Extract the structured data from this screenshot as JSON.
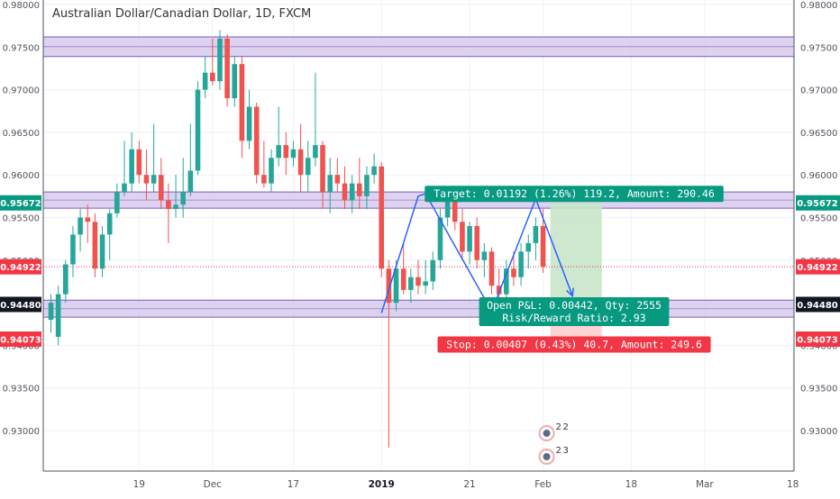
{
  "chart_data": {
    "type": "candlestick",
    "title": "Australian Dollar/Canadian Dollar, 1D, FXCM",
    "y_axis": {
      "range": [
        0.9255,
        0.98
      ],
      "ticks": [
        "0.98000",
        "0.97500",
        "0.97000",
        "0.96500",
        "0.96000",
        "0.95500",
        "0.95000",
        "0.94500",
        "0.94000",
        "0.93500",
        "0.93000"
      ]
    },
    "x_axis": {
      "labels": [
        {
          "label": "19",
          "index": 12
        },
        {
          "label": "Dec",
          "index": 22
        },
        {
          "label": "17",
          "index": 33
        },
        {
          "label": "2019",
          "index": 45
        },
        {
          "label": "21",
          "index": 57
        },
        {
          "label": "Feb",
          "index": 67
        },
        {
          "label": "18",
          "index": 79
        },
        {
          "label": "Mar",
          "index": 89
        },
        {
          "label": "18",
          "index": 101
        }
      ]
    },
    "candles": [
      [
        0.943,
        0.946,
        0.9415,
        0.945
      ],
      [
        0.941,
        0.947,
        0.94,
        0.946
      ],
      [
        0.946,
        0.95,
        0.945,
        0.9495
      ],
      [
        0.9495,
        0.954,
        0.948,
        0.953
      ],
      [
        0.953,
        0.956,
        0.951,
        0.955
      ],
      [
        0.955,
        0.9565,
        0.952,
        0.9545
      ],
      [
        0.9545,
        0.9555,
        0.948,
        0.949
      ],
      [
        0.949,
        0.954,
        0.948,
        0.953
      ],
      [
        0.953,
        0.956,
        0.95,
        0.9555
      ],
      [
        0.9555,
        0.959,
        0.955,
        0.958
      ],
      [
        0.958,
        0.964,
        0.9575,
        0.959
      ],
      [
        0.959,
        0.965,
        0.958,
        0.963
      ],
      [
        0.963,
        0.964,
        0.959,
        0.96
      ],
      [
        0.96,
        0.963,
        0.957,
        0.959
      ],
      [
        0.959,
        0.966,
        0.958,
        0.96
      ],
      [
        0.96,
        0.962,
        0.956,
        0.957
      ],
      [
        0.957,
        0.959,
        0.952,
        0.956
      ],
      [
        0.956,
        0.96,
        0.955,
        0.9565
      ],
      [
        0.9565,
        0.962,
        0.955,
        0.958
      ],
      [
        0.958,
        0.966,
        0.9575,
        0.9605
      ],
      [
        0.9605,
        0.971,
        0.96,
        0.97
      ],
      [
        0.97,
        0.974,
        0.969,
        0.972
      ],
      [
        0.972,
        0.976,
        0.9705,
        0.971
      ],
      [
        0.971,
        0.977,
        0.97,
        0.976
      ],
      [
        0.976,
        0.9765,
        0.968,
        0.969
      ],
      [
        0.969,
        0.974,
        0.968,
        0.973
      ],
      [
        0.973,
        0.974,
        0.962,
        0.964
      ],
      [
        0.964,
        0.97,
        0.963,
        0.968
      ],
      [
        0.968,
        0.9685,
        0.959,
        0.96
      ],
      [
        0.96,
        0.964,
        0.9585,
        0.959
      ],
      [
        0.959,
        0.963,
        0.958,
        0.962
      ],
      [
        0.962,
        0.968,
        0.961,
        0.9635
      ],
      [
        0.9635,
        0.965,
        0.96,
        0.962
      ],
      [
        0.962,
        0.964,
        0.961,
        0.963
      ],
      [
        0.963,
        0.966,
        0.958,
        0.96
      ],
      [
        0.96,
        0.964,
        0.958,
        0.962
      ],
      [
        0.962,
        0.972,
        0.961,
        0.9635
      ],
      [
        0.9635,
        0.964,
        0.956,
        0.958
      ],
      [
        0.958,
        0.962,
        0.9555,
        0.96
      ],
      [
        0.96,
        0.962,
        0.958,
        0.959
      ],
      [
        0.959,
        0.961,
        0.956,
        0.957
      ],
      [
        0.957,
        0.96,
        0.9555,
        0.959
      ],
      [
        0.959,
        0.962,
        0.956,
        0.9575
      ],
      [
        0.9575,
        0.961,
        0.956,
        0.96
      ],
      [
        0.96,
        0.9625,
        0.959,
        0.961
      ],
      [
        0.961,
        0.9615,
        0.948,
        0.949
      ],
      [
        0.949,
        0.95,
        0.928,
        0.945
      ],
      [
        0.945,
        0.95,
        0.944,
        0.949
      ],
      [
        0.949,
        0.952,
        0.946,
        0.9465
      ],
      [
        0.9465,
        0.949,
        0.945,
        0.948
      ],
      [
        0.948,
        0.95,
        0.946,
        0.947
      ],
      [
        0.947,
        0.95,
        0.946,
        0.9475
      ],
      [
        0.9475,
        0.951,
        0.9465,
        0.95
      ],
      [
        0.95,
        0.956,
        0.949,
        0.955
      ],
      [
        0.955,
        0.958,
        0.954,
        0.957
      ],
      [
        0.957,
        0.9575,
        0.9535,
        0.9545
      ],
      [
        0.9545,
        0.956,
        0.95,
        0.951
      ],
      [
        0.951,
        0.9545,
        0.9495,
        0.954
      ],
      [
        0.954,
        0.955,
        0.949,
        0.95
      ],
      [
        0.95,
        0.952,
        0.948,
        0.951
      ],
      [
        0.951,
        0.9515,
        0.946,
        0.947
      ],
      [
        0.947,
        0.949,
        0.9455,
        0.946
      ],
      [
        0.946,
        0.95,
        0.9455,
        0.949
      ],
      [
        0.949,
        0.951,
        0.947,
        0.948
      ],
      [
        0.948,
        0.952,
        0.947,
        0.951
      ],
      [
        0.951,
        0.953,
        0.949,
        0.952
      ],
      [
        0.952,
        0.955,
        0.95,
        0.954
      ],
      [
        0.954,
        0.956,
        0.9485,
        0.9492
      ]
    ],
    "zones": [
      {
        "name": "upper-resistance",
        "top": 0.9762,
        "bottom": 0.9739
      },
      {
        "name": "middle-resistance",
        "top": 0.958,
        "bottom": 0.9561
      },
      {
        "name": "support",
        "top": 0.9453,
        "bottom": 0.9433
      }
    ],
    "current_price": 0.94922,
    "price_tags": [
      {
        "label": "0.95672",
        "value": 0.95672,
        "color": "#089981"
      },
      {
        "label": "0.94922",
        "value": 0.94922,
        "color": "#f23645"
      },
      {
        "label": "0.94480",
        "value": 0.9448,
        "color": "#131722"
      },
      {
        "label": "0.94073",
        "value": 0.94073,
        "color": "#f23645"
      }
    ],
    "pattern_path": [
      {
        "index": 45,
        "price": 0.9438
      },
      {
        "index": 50,
        "price": 0.9575
      },
      {
        "index": 51,
        "price": 0.9578
      },
      {
        "index": 60,
        "price": 0.944
      },
      {
        "index": 66,
        "price": 0.9572
      },
      {
        "index": 71,
        "price": 0.9458
      }
    ],
    "position": {
      "start_index": 68,
      "end_index": 75,
      "entry": 0.9448,
      "target": 0.95672,
      "stop": 0.94073,
      "target_label": "Target: 0.01192 (1.26%) 119.2, Amount: 290.46",
      "pl_label": "Open P&L: 0.00442, Qty: 2555",
      "rr_label": "Risk/Reward Ratio: 2.93",
      "stop_label": "Stop: 0.00407 (0.43%) 40.7, Amount: 249.6"
    },
    "events": [
      {
        "index": 67,
        "labels": [
          "2",
          "2"
        ]
      },
      {
        "index": 67,
        "labels": [
          "2",
          "3"
        ]
      }
    ],
    "colors": {
      "up": "#26a69a",
      "down": "#ef5350",
      "zone_fill": "#d1c4e9",
      "zone_line": "#7e57c2",
      "pattern": "#2962ff",
      "target_fill": "#c8e6c9",
      "stop_fill": "#ffcdd2",
      "target_tag": "#089981",
      "stop_tag": "#f23645",
      "grid": "#eef1f6"
    }
  }
}
